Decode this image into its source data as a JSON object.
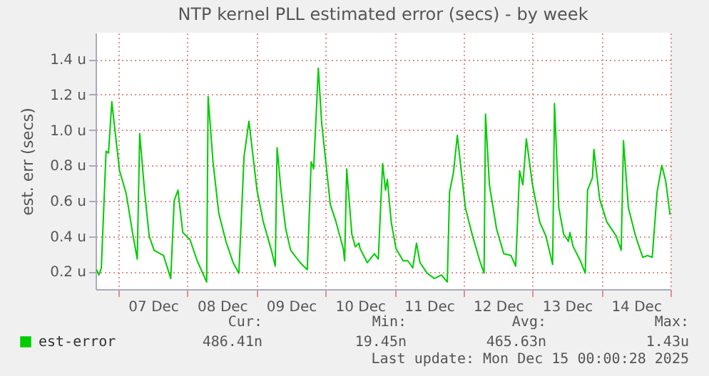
{
  "chart_data": {
    "type": "line",
    "title": "NTP kernel PLL estimated error (secs) - by week",
    "ylabel": "est. err (secs)",
    "x": [
      "2025-12-06T16:21",
      "2025-12-06T17:09",
      "2025-12-06T18:00",
      "2025-12-06T19:39",
      "2025-12-06T20:30",
      "2025-12-06T21:39",
      "2025-12-06T23:00",
      "2025-12-07T00:21",
      "2025-12-07T02:39",
      "2025-12-07T04:51",
      "2025-12-07T06:30",
      "2025-12-07T07:21",
      "2025-12-07T09:00",
      "2025-12-07T10:39",
      "2025-12-07T12:21",
      "2025-12-07T15:39",
      "2025-12-07T18:09",
      "2025-12-07T19:21",
      "2025-12-07T20:39",
      "2025-12-07T22:21",
      "2025-12-08T00:51",
      "2025-12-08T03:21",
      "2025-12-08T06:39",
      "2025-12-08T07:09",
      "2025-12-08T08:51",
      "2025-12-08T10:51",
      "2025-12-08T13:21",
      "2025-12-08T15:51",
      "2025-12-08T17:51",
      "2025-12-08T19:39",
      "2025-12-08T21:21",
      "2025-12-09T00:09",
      "2025-12-09T02:21",
      "2025-12-09T05:09",
      "2025-12-09T06:30",
      "2025-12-09T07:09",
      "2025-12-09T08:30",
      "2025-12-09T10:09",
      "2025-12-09T11:51",
      "2025-12-09T15:09",
      "2025-12-09T17:39",
      "2025-12-09T19:00",
      "2025-12-09T19:51",
      "2025-12-09T21:30",
      "2025-12-09T22:39",
      "2025-12-10T01:39",
      "2025-12-10T03:39",
      "2025-12-10T06:09",
      "2025-12-10T06:39",
      "2025-12-10T07:21",
      "2025-12-10T09:09",
      "2025-12-10T10:21",
      "2025-12-10T11:39",
      "2025-12-10T12:00",
      "2025-12-10T14:30",
      "2025-12-10T17:00",
      "2025-12-10T18:21",
      "2025-12-10T19:51",
      "2025-12-10T20:51",
      "2025-12-10T21:30",
      "2025-12-10T22:51",
      "2025-12-11T00:30",
      "2025-12-11T03:00",
      "2025-12-11T04:39",
      "2025-12-11T06:21",
      "2025-12-11T07:39",
      "2025-12-11T08:51",
      "2025-12-11T11:21",
      "2025-12-11T13:51",
      "2025-12-11T16:21",
      "2025-12-11T18:21",
      "2025-12-11T19:09",
      "2025-12-11T20:30",
      "2025-12-11T21:51",
      "2025-12-11T23:00",
      "2025-12-12T00:39",
      "2025-12-12T03:09",
      "2025-12-12T05:39",
      "2025-12-12T07:09",
      "2025-12-12T07:39",
      "2025-12-12T09:00",
      "2025-12-12T11:30",
      "2025-12-12T14:00",
      "2025-12-12T16:30",
      "2025-12-12T18:09",
      "2025-12-12T19:30",
      "2025-12-12T20:39",
      "2025-12-12T21:51",
      "2025-12-13T00:00",
      "2025-12-13T02:30",
      "2025-12-13T04:39",
      "2025-12-13T07:00",
      "2025-12-13T07:39",
      "2025-12-13T09:09",
      "2025-12-13T10:51",
      "2025-12-13T12:30",
      "2025-12-13T13:00",
      "2025-12-13T14:09",
      "2025-12-13T16:39",
      "2025-12-13T18:21",
      "2025-12-13T19:09",
      "2025-12-13T20:51",
      "2025-12-13T21:21",
      "2025-12-13T23:21",
      "2025-12-14T01:51",
      "2025-12-14T03:30",
      "2025-12-14T05:09",
      "2025-12-14T06:51",
      "2025-12-14T07:39",
      "2025-12-14T09:21",
      "2025-12-14T11:51",
      "2025-12-14T14:21",
      "2025-12-14T16:00",
      "2025-12-14T17:39",
      "2025-12-14T19:21",
      "2025-12-14T21:00",
      "2025-12-14T22:21",
      "2025-12-14T23:51"
    ],
    "series": [
      {
        "name": "est-error",
        "color": "#00cc00",
        "values": [
          0.21,
          0.18,
          0.22,
          0.88,
          0.87,
          1.16,
          0.96,
          0.77,
          0.64,
          0.42,
          0.27,
          0.98,
          0.66,
          0.4,
          0.32,
          0.29,
          0.16,
          0.6,
          0.66,
          0.42,
          0.38,
          0.26,
          0.14,
          1.19,
          0.82,
          0.53,
          0.37,
          0.25,
          0.19,
          0.85,
          1.05,
          0.66,
          0.48,
          0.32,
          0.23,
          0.9,
          0.66,
          0.44,
          0.32,
          0.25,
          0.21,
          0.82,
          0.78,
          1.35,
          1.04,
          0.58,
          0.48,
          0.33,
          0.26,
          0.78,
          0.41,
          0.34,
          0.36,
          0.33,
          0.25,
          0.3,
          0.27,
          0.81,
          0.66,
          0.72,
          0.48,
          0.33,
          0.26,
          0.26,
          0.22,
          0.36,
          0.25,
          0.19,
          0.16,
          0.18,
          0.14,
          0.65,
          0.76,
          0.97,
          0.8,
          0.56,
          0.4,
          0.26,
          0.19,
          1.09,
          0.69,
          0.44,
          0.3,
          0.29,
          0.23,
          0.77,
          0.69,
          0.95,
          0.69,
          0.48,
          0.4,
          0.24,
          1.15,
          0.56,
          0.41,
          0.37,
          0.42,
          0.34,
          0.26,
          0.19,
          0.66,
          0.73,
          0.89,
          0.61,
          0.48,
          0.44,
          0.4,
          0.32,
          0.94,
          0.56,
          0.4,
          0.28,
          0.29,
          0.28,
          0.65,
          0.8,
          0.71,
          0.52
        ]
      }
    ],
    "xlim": [
      "2025-12-06T16:00",
      "2025-12-15T00:00"
    ],
    "xticks": [
      {
        "value": "2025-12-07T00:00",
        "label": null
      },
      {
        "value": "2025-12-07T12:00",
        "label": "07 Dec"
      },
      {
        "value": "2025-12-08T00:00",
        "label": null
      },
      {
        "value": "2025-12-08T12:00",
        "label": "08 Dec"
      },
      {
        "value": "2025-12-09T00:00",
        "label": null
      },
      {
        "value": "2025-12-09T12:00",
        "label": "09 Dec"
      },
      {
        "value": "2025-12-10T00:00",
        "label": null
      },
      {
        "value": "2025-12-10T12:00",
        "label": "10 Dec"
      },
      {
        "value": "2025-12-11T00:00",
        "label": null
      },
      {
        "value": "2025-12-11T12:00",
        "label": "11 Dec"
      },
      {
        "value": "2025-12-12T00:00",
        "label": null
      },
      {
        "value": "2025-12-12T12:00",
        "label": "12 Dec"
      },
      {
        "value": "2025-12-13T00:00",
        "label": null
      },
      {
        "value": "2025-12-13T12:00",
        "label": "13 Dec"
      },
      {
        "value": "2025-12-14T00:00",
        "label": null
      },
      {
        "value": "2025-12-14T12:00",
        "label": "14 Dec"
      },
      {
        "value": "2025-12-15T00:00",
        "label": null
      }
    ],
    "ylim": [
      0.1,
      1.55
    ],
    "yticks": [
      {
        "value": 0.2,
        "label": "0.2 u"
      },
      {
        "value": 0.4,
        "label": "0.4 u"
      },
      {
        "value": 0.6,
        "label": "0.6 u"
      },
      {
        "value": 0.8,
        "label": "0.8 u"
      },
      {
        "value": 1.0,
        "label": "1.0 u"
      },
      {
        "value": 1.2,
        "label": "1.2 u"
      },
      {
        "value": 1.4,
        "label": "1.4 u"
      }
    ],
    "grid": true,
    "legend": "bottom left",
    "annotations": [
      "Cur:",
      "486.41n",
      "Min:",
      "19.45n",
      "Avg:",
      "465.63n",
      "Max:",
      "1.43u",
      "Last update: Mon Dec 15 00:00:28 2025"
    ]
  }
}
